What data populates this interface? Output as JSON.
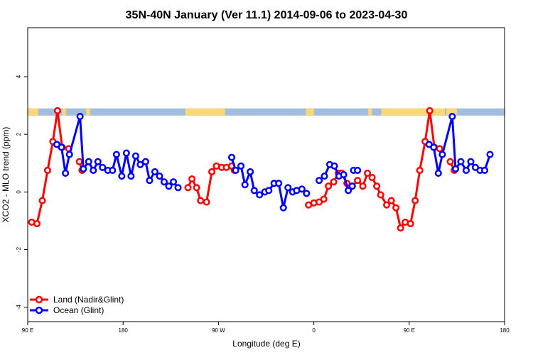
{
  "chart_data": {
    "type": "line",
    "title": "35N-40N January (Ver 11.1)   2014-09-06 to 2023-04-30",
    "xlabel": "Longitude (deg E)",
    "ylabel": "XCO2 - MLO trend (ppm)",
    "xlim": [
      90,
      450
    ],
    "ylim": [
      -4.5,
      5.7
    ],
    "x_ticks": [
      {
        "value": 90,
        "label": "90 E"
      },
      {
        "value": 162,
        "label": "180"
      },
      {
        "value": 234,
        "label": "90 W"
      },
      {
        "value": 306,
        "label": "0"
      },
      {
        "value": 378,
        "label": "90 E"
      },
      {
        "value": 450,
        "label": "180"
      }
    ],
    "y_ticks": [
      {
        "value": -4,
        "label": "-4"
      },
      {
        "value": -2,
        "label": "-2"
      },
      {
        "value": 0,
        "label": "0"
      },
      {
        "value": 2,
        "label": "2"
      },
      {
        "value": 4,
        "label": "4"
      }
    ],
    "surface_band": {
      "y_range": [
        2.65,
        2.9
      ],
      "ocean_color": "#a2bddd",
      "land_color": "#f9d879",
      "land_segments": [
        [
          90,
          98
        ],
        [
          116,
          119
        ],
        [
          134,
          137
        ],
        [
          209,
          239
        ],
        [
          300,
          306
        ],
        [
          347,
          350
        ],
        [
          357,
          405
        ],
        [
          406,
          414
        ]
      ]
    },
    "series": [
      {
        "name": "Land (Nadir&Glint)",
        "color": "#ff0000",
        "segments": [
          [
            [
              93,
              -1.05
            ],
            [
              97,
              -1.1
            ],
            [
              101,
              -0.3
            ],
            [
              105,
              0.75
            ],
            [
              109,
              1.75
            ],
            [
              112.5,
              2.82
            ],
            [
              116,
              1.55
            ],
            [
              121,
              1.5
            ]
          ],
          [
            [
              129,
              1.05
            ],
            [
              131,
              0.75
            ]
          ],
          [
            [
              211,
              0.15
            ],
            [
              214,
              0.45
            ],
            [
              217.5,
              0.15
            ],
            [
              220.5,
              -0.3
            ],
            [
              225,
              -0.35
            ],
            [
              229,
              0.7
            ],
            [
              232.5,
              0.9
            ],
            [
              236.5,
              0.85
            ],
            [
              240,
              0.85
            ],
            [
              244,
              0.9
            ],
            [
              246,
              0.75
            ]
          ],
          [
            [
              302,
              -0.45
            ],
            [
              306,
              -0.38
            ],
            [
              310,
              -0.35
            ],
            [
              313.5,
              -0.25
            ],
            [
              317,
              0.2
            ],
            [
              321,
              0.35
            ],
            [
              324.5,
              0.65
            ],
            [
              327,
              0.65
            ],
            [
              331,
              0.3
            ],
            [
              335,
              0.2
            ],
            [
              339,
              0.4
            ],
            [
              343,
              0.2
            ],
            [
              346.5,
              0.65
            ],
            [
              350,
              0.5
            ],
            [
              353.5,
              0.2
            ],
            [
              356.5,
              -0.1
            ],
            [
              361,
              -0.45
            ],
            [
              364.5,
              -0.3
            ],
            [
              368,
              -0.55
            ],
            [
              371.5,
              -1.25
            ],
            [
              375,
              -1.05
            ],
            [
              379,
              -1.1
            ],
            [
              382.5,
              -0.3
            ],
            [
              386,
              0.75
            ],
            [
              390,
              1.75
            ],
            [
              393.5,
              2.82
            ],
            [
              397,
              1.55
            ],
            [
              401,
              1.5
            ]
          ],
          [
            [
              409,
              1.05
            ],
            [
              412,
              0.75
            ]
          ]
        ]
      },
      {
        "name": "Ocean (Glint)",
        "color": "#0000ff",
        "segments": [
          [
            [
              112,
              1.65
            ],
            [
              115.5,
              1.55
            ],
            [
              118.5,
              0.65
            ],
            [
              121.5,
              1.3
            ],
            [
              129.5,
              2.62
            ],
            [
              132,
              0.8
            ],
            [
              136,
              1.05
            ],
            [
              139.5,
              0.75
            ],
            [
              143,
              1.05
            ],
            [
              146.5,
              0.85
            ],
            [
              150.5,
              0.75
            ],
            [
              154,
              0.75
            ],
            [
              157,
              1.3
            ],
            [
              161,
              0.55
            ],
            [
              164.5,
              1.35
            ],
            [
              168,
              0.55
            ],
            [
              171.5,
              1.25
            ],
            [
              175,
              0.95
            ],
            [
              179,
              1.05
            ],
            [
              182,
              0.4
            ],
            [
              186,
              0.7
            ],
            [
              189.5,
              0.55
            ],
            [
              193,
              0.35
            ],
            [
              196.5,
              0.2
            ],
            [
              200,
              0.35
            ],
            [
              203.5,
              0.15
            ]
          ],
          [
            [
              244,
              1.2
            ],
            [
              247,
              0.75
            ],
            [
              251,
              0.9
            ],
            [
              254,
              0.25
            ],
            [
              258,
              0.7
            ],
            [
              261,
              0.05
            ],
            [
              265,
              -0.1
            ],
            [
              269,
              0.0
            ],
            [
              272,
              0.05
            ],
            [
              276,
              0.3
            ],
            [
              279.5,
              0.3
            ],
            [
              283,
              -0.55
            ],
            [
              286.5,
              0.15
            ],
            [
              290,
              0.0
            ],
            [
              293,
              0.05
            ],
            [
              297,
              0.1
            ],
            [
              300.5,
              -0.05
            ]
          ],
          [
            [
              310,
              0.4
            ],
            [
              314,
              0.55
            ],
            [
              318,
              0.95
            ],
            [
              321.5,
              0.9
            ],
            [
              325,
              0.55
            ],
            [
              328.5,
              0.6
            ],
            [
              332,
              0.05
            ],
            [
              335,
              0.2
            ]
          ],
          [
            [
              336,
              0.75
            ],
            [
              339,
              0.75
            ]
          ],
          [
            [
              393,
              1.65
            ],
            [
              396.5,
              1.55
            ],
            [
              400,
              0.65
            ],
            [
              403,
              1.3
            ],
            [
              410.5,
              2.62
            ],
            [
              413,
              0.8
            ],
            [
              417,
              1.05
            ],
            [
              421,
              0.75
            ],
            [
              424.5,
              1.05
            ],
            [
              428,
              0.85
            ],
            [
              431.5,
              0.75
            ],
            [
              435,
              0.75
            ],
            [
              439,
              1.3
            ]
          ]
        ]
      }
    ],
    "grid": false,
    "legend_position": "bottom-left"
  }
}
